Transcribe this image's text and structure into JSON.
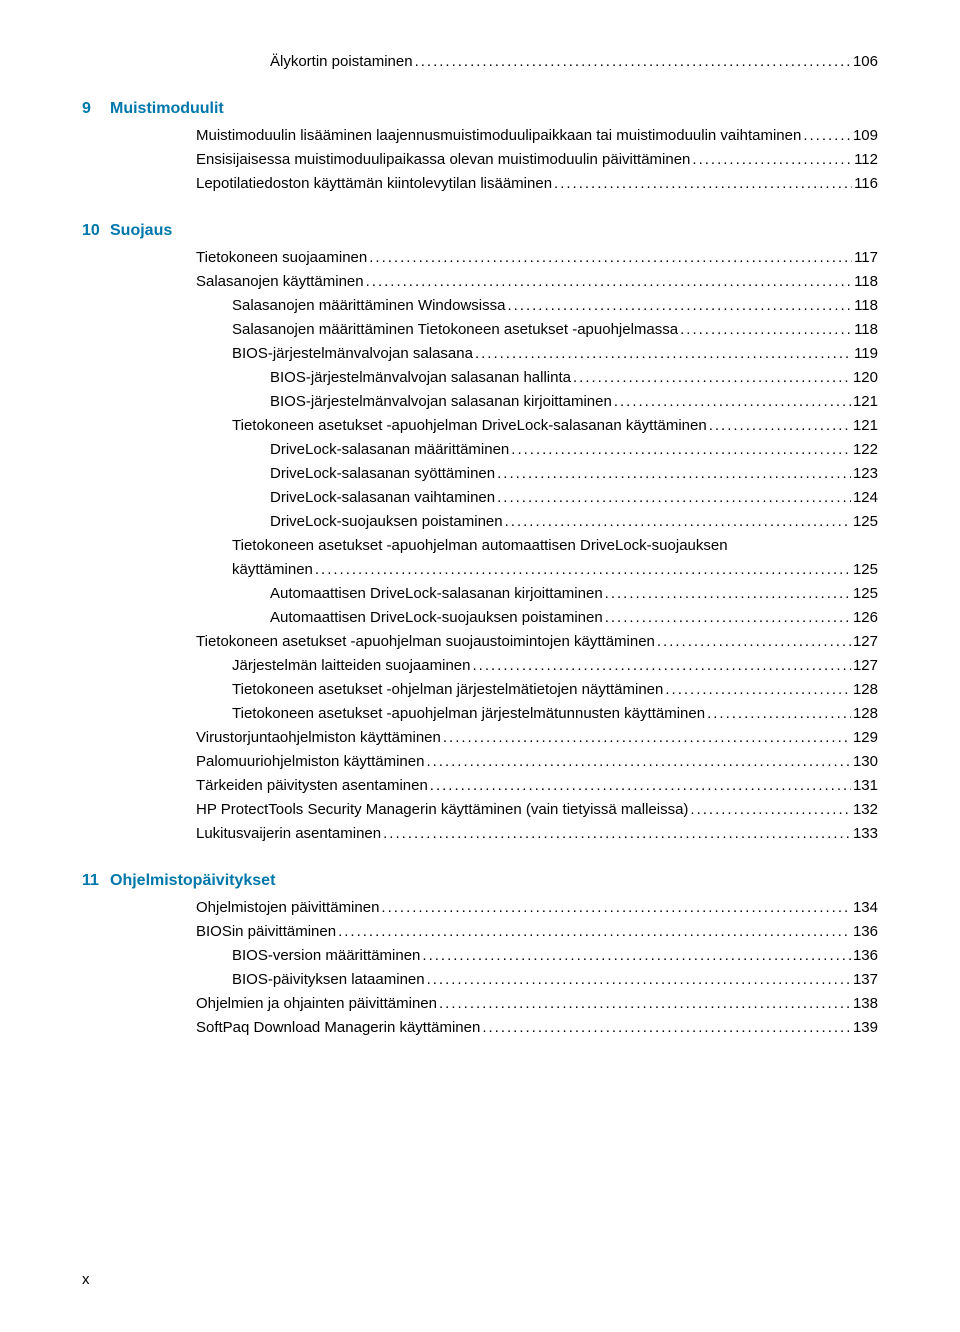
{
  "colors": {
    "heading": "#0077aa",
    "text": "#000000",
    "background": "#ffffff"
  },
  "fontsize": {
    "body": 15,
    "heading": 16
  },
  "page_number": "x",
  "pre": [
    {
      "indent": 3,
      "text": "Älykortin poistaminen",
      "page": "106"
    }
  ],
  "chapters": [
    {
      "num": "9",
      "title": "Muistimoduulit",
      "entries": [
        {
          "indent": 1,
          "text": "Muistimoduulin lisääminen laajennusmuistimoduulipaikkaan tai muistimoduulin vaihtaminen",
          "page": "109"
        },
        {
          "indent": 1,
          "text": "Ensisijaisessa muistimoduulipaikassa olevan muistimoduulin päivittäminen",
          "page": "112"
        },
        {
          "indent": 1,
          "text": "Lepotilatiedoston käyttämän kiintolevytilan lisääminen",
          "page": "116"
        }
      ]
    },
    {
      "num": "10",
      "title": "Suojaus",
      "entries": [
        {
          "indent": 1,
          "text": "Tietokoneen suojaaminen",
          "page": "117"
        },
        {
          "indent": 1,
          "text": "Salasanojen käyttäminen",
          "page": "118"
        },
        {
          "indent": 2,
          "text": "Salasanojen määrittäminen Windowsissa",
          "page": "118"
        },
        {
          "indent": 2,
          "text": "Salasanojen määrittäminen Tietokoneen asetukset -apuohjelmassa",
          "page": "118"
        },
        {
          "indent": 2,
          "text": "BIOS-järjestelmänvalvojan salasana",
          "page": "119"
        },
        {
          "indent": 3,
          "text": "BIOS-järjestelmänvalvojan salasanan hallinta",
          "page": "120"
        },
        {
          "indent": 3,
          "text": "BIOS-järjestelmänvalvojan salasanan kirjoittaminen",
          "page": "121"
        },
        {
          "indent": 2,
          "text": "Tietokoneen asetukset -apuohjelman DriveLock-salasanan käyttäminen",
          "page": "121"
        },
        {
          "indent": 3,
          "text": "DriveLock-salasanan määrittäminen",
          "page": "122"
        },
        {
          "indent": 3,
          "text": "DriveLock-salasanan syöttäminen",
          "page": "123"
        },
        {
          "indent": 3,
          "text": "DriveLock-salasanan vaihtaminen",
          "page": "124"
        },
        {
          "indent": 3,
          "text": "DriveLock-suojauksen poistaminen",
          "page": "125"
        },
        {
          "indent": 2,
          "text": "Tietokoneen asetukset -apuohjelman automaattisen DriveLock-suojauksen käyttäminen",
          "page": "125",
          "wrap": true
        },
        {
          "indent": 3,
          "text": "Automaattisen DriveLock-salasanan kirjoittaminen",
          "page": "125"
        },
        {
          "indent": 3,
          "text": "Automaattisen DriveLock-suojauksen poistaminen",
          "page": "126"
        },
        {
          "indent": 1,
          "text": "Tietokoneen asetukset -apuohjelman suojaustoimintojen käyttäminen",
          "page": "127"
        },
        {
          "indent": 2,
          "text": "Järjestelmän laitteiden suojaaminen",
          "page": "127"
        },
        {
          "indent": 2,
          "text": "Tietokoneen asetukset -ohjelman järjestelmätietojen näyttäminen",
          "page": "128"
        },
        {
          "indent": 2,
          "text": "Tietokoneen asetukset -apuohjelman järjestelmätunnusten käyttäminen",
          "page": "128"
        },
        {
          "indent": 1,
          "text": "Virustorjuntaohjelmiston käyttäminen",
          "page": "129"
        },
        {
          "indent": 1,
          "text": "Palomuuriohjelmiston käyttäminen",
          "page": "130"
        },
        {
          "indent": 1,
          "text": "Tärkeiden päivitysten asentaminen",
          "page": "131"
        },
        {
          "indent": 1,
          "text": "HP ProtectTools Security Managerin käyttäminen (vain tietyissä malleissa)",
          "page": "132"
        },
        {
          "indent": 1,
          "text": "Lukitusvaijerin asentaminen",
          "page": "133"
        }
      ]
    },
    {
      "num": "11",
      "title": "Ohjelmistopäivitykset",
      "entries": [
        {
          "indent": 1,
          "text": "Ohjelmistojen päivittäminen",
          "page": "134"
        },
        {
          "indent": 1,
          "text": "BIOSin päivittäminen",
          "page": "136"
        },
        {
          "indent": 2,
          "text": "BIOS-version määrittäminen",
          "page": "136"
        },
        {
          "indent": 2,
          "text": "BIOS-päivityksen lataaminen",
          "page": "137"
        },
        {
          "indent": 1,
          "text": "Ohjelmien ja ohjainten päivittäminen",
          "page": "138"
        },
        {
          "indent": 1,
          "text": "SoftPaq Download Managerin käyttäminen",
          "page": "139"
        }
      ]
    }
  ]
}
